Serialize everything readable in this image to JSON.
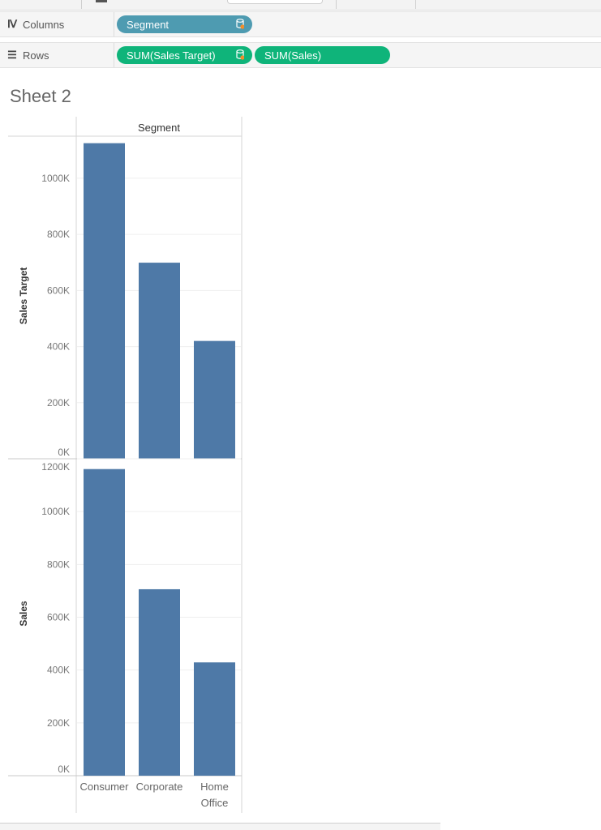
{
  "shelves": {
    "columns": {
      "label": "Columns",
      "icon": "columns-icon",
      "pills": [
        "Segment"
      ]
    },
    "rows": {
      "label": "Rows",
      "icon": "rows-icon",
      "pills": [
        "SUM(Sales Target)",
        "SUM(Sales)"
      ]
    }
  },
  "sheet": {
    "title": "Sheet 2"
  },
  "colors": {
    "dimension_pill": "#4e9bb1",
    "measure_pill": "#0fb47a",
    "bar": "#4e79a7"
  },
  "chart_data": [
    {
      "type": "bar",
      "header": "Segment",
      "categories": [
        "Consumer",
        "Corporate",
        "Home Office"
      ],
      "ylabel": "Sales Target",
      "ylim": [
        0,
        1150000
      ],
      "yticks": [
        0,
        200000,
        400000,
        600000,
        800000,
        1000000
      ],
      "ytick_labels": [
        "0K",
        "200K",
        "400K",
        "600K",
        "800K",
        "1000K"
      ],
      "values": [
        1125000,
        699000,
        420000
      ],
      "grid": true
    },
    {
      "type": "bar",
      "categories": [
        "Consumer",
        "Corporate",
        "Home Office"
      ],
      "ylabel": "Sales",
      "ylim": [
        0,
        1200000
      ],
      "yticks": [
        0,
        200000,
        400000,
        600000,
        800000,
        1000000,
        1200000
      ],
      "ytick_labels": [
        "0K",
        "200K",
        "400K",
        "600K",
        "800K",
        "1000K",
        "1200K"
      ],
      "values": [
        1161000,
        706000,
        429000
      ],
      "grid": true
    }
  ]
}
